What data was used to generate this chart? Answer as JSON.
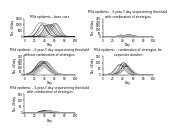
{
  "title_top_left": "Mild epidemic - base case",
  "title_top_right": "Mild epidemic - 3-year-7-day sequestering threshold\nwith combination of strategies",
  "title_mid_left": "Mild epidemic - 3-year-7-day sequestering threshold\nwithout combination of strategies",
  "title_mid_right": "Mild epidemic - combination of strategies for\nsequester duration",
  "title_bot_left": "Mild epidemic - 3-year-7-day sequestering threshold\nwith combination of strategies",
  "xlabel": "Day",
  "ylabel": "No. ill/day",
  "dark_color": "#333333",
  "light_color": "#bbbbbb",
  "bg_color": "#ffffff",
  "font_size": 2.2,
  "tick_font_size": 2.0,
  "xmax": 100,
  "base_yticks": [
    0,
    500,
    1000,
    1500
  ],
  "mid_yticks": [
    0,
    50,
    100,
    150,
    200,
    250
  ],
  "low_yticks": [
    0,
    50,
    100,
    150
  ],
  "xticks": [
    0,
    20,
    40,
    60,
    80,
    100
  ]
}
